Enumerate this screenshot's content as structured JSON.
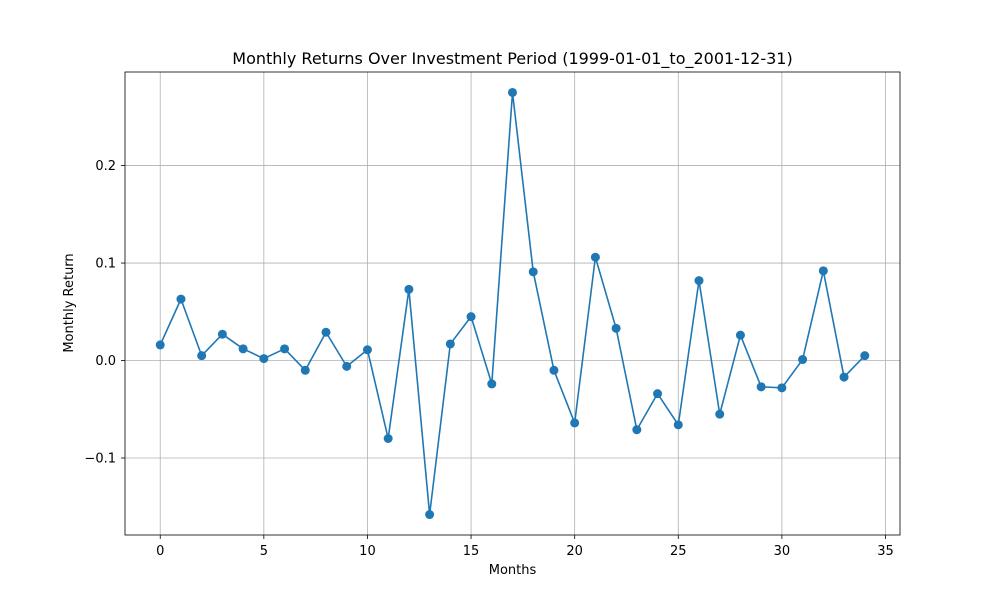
{
  "chart_data": {
    "type": "line",
    "title": "Monthly Returns Over Investment Period (1999-01-01_to_2001-12-31)",
    "xlabel": "Months",
    "ylabel": "Monthly Return",
    "xlim": [
      -1.7,
      35.7
    ],
    "ylim": [
      -0.179,
      0.296
    ],
    "x_ticks": [
      0,
      5,
      10,
      15,
      20,
      25,
      30,
      35
    ],
    "x_tick_labels": [
      "0",
      "5",
      "10",
      "15",
      "20",
      "25",
      "30",
      "35"
    ],
    "y_ticks": [
      -0.1,
      0.0,
      0.1,
      0.2
    ],
    "y_tick_labels": [
      "−0.1",
      "0.0",
      "0.1",
      "0.2"
    ],
    "grid": true,
    "marker": "circle",
    "series": [
      {
        "color": "#1f77b4",
        "x": [
          0,
          1,
          2,
          3,
          4,
          5,
          6,
          7,
          8,
          9,
          10,
          11,
          12,
          13,
          14,
          15,
          16,
          17,
          18,
          19,
          20,
          21,
          22,
          23,
          24,
          25,
          26,
          27,
          28,
          29,
          30,
          31,
          32,
          33,
          34
        ],
        "values": [
          0.016,
          0.063,
          0.005,
          0.027,
          0.012,
          0.002,
          0.012,
          -0.01,
          0.029,
          -0.006,
          0.011,
          -0.08,
          0.073,
          -0.158,
          0.017,
          0.045,
          -0.024,
          0.275,
          0.091,
          -0.01,
          -0.064,
          0.106,
          0.033,
          -0.071,
          -0.034,
          -0.066,
          0.082,
          -0.055,
          0.026,
          -0.027,
          -0.028,
          0.001,
          0.092,
          -0.017,
          0.005
        ]
      }
    ]
  }
}
